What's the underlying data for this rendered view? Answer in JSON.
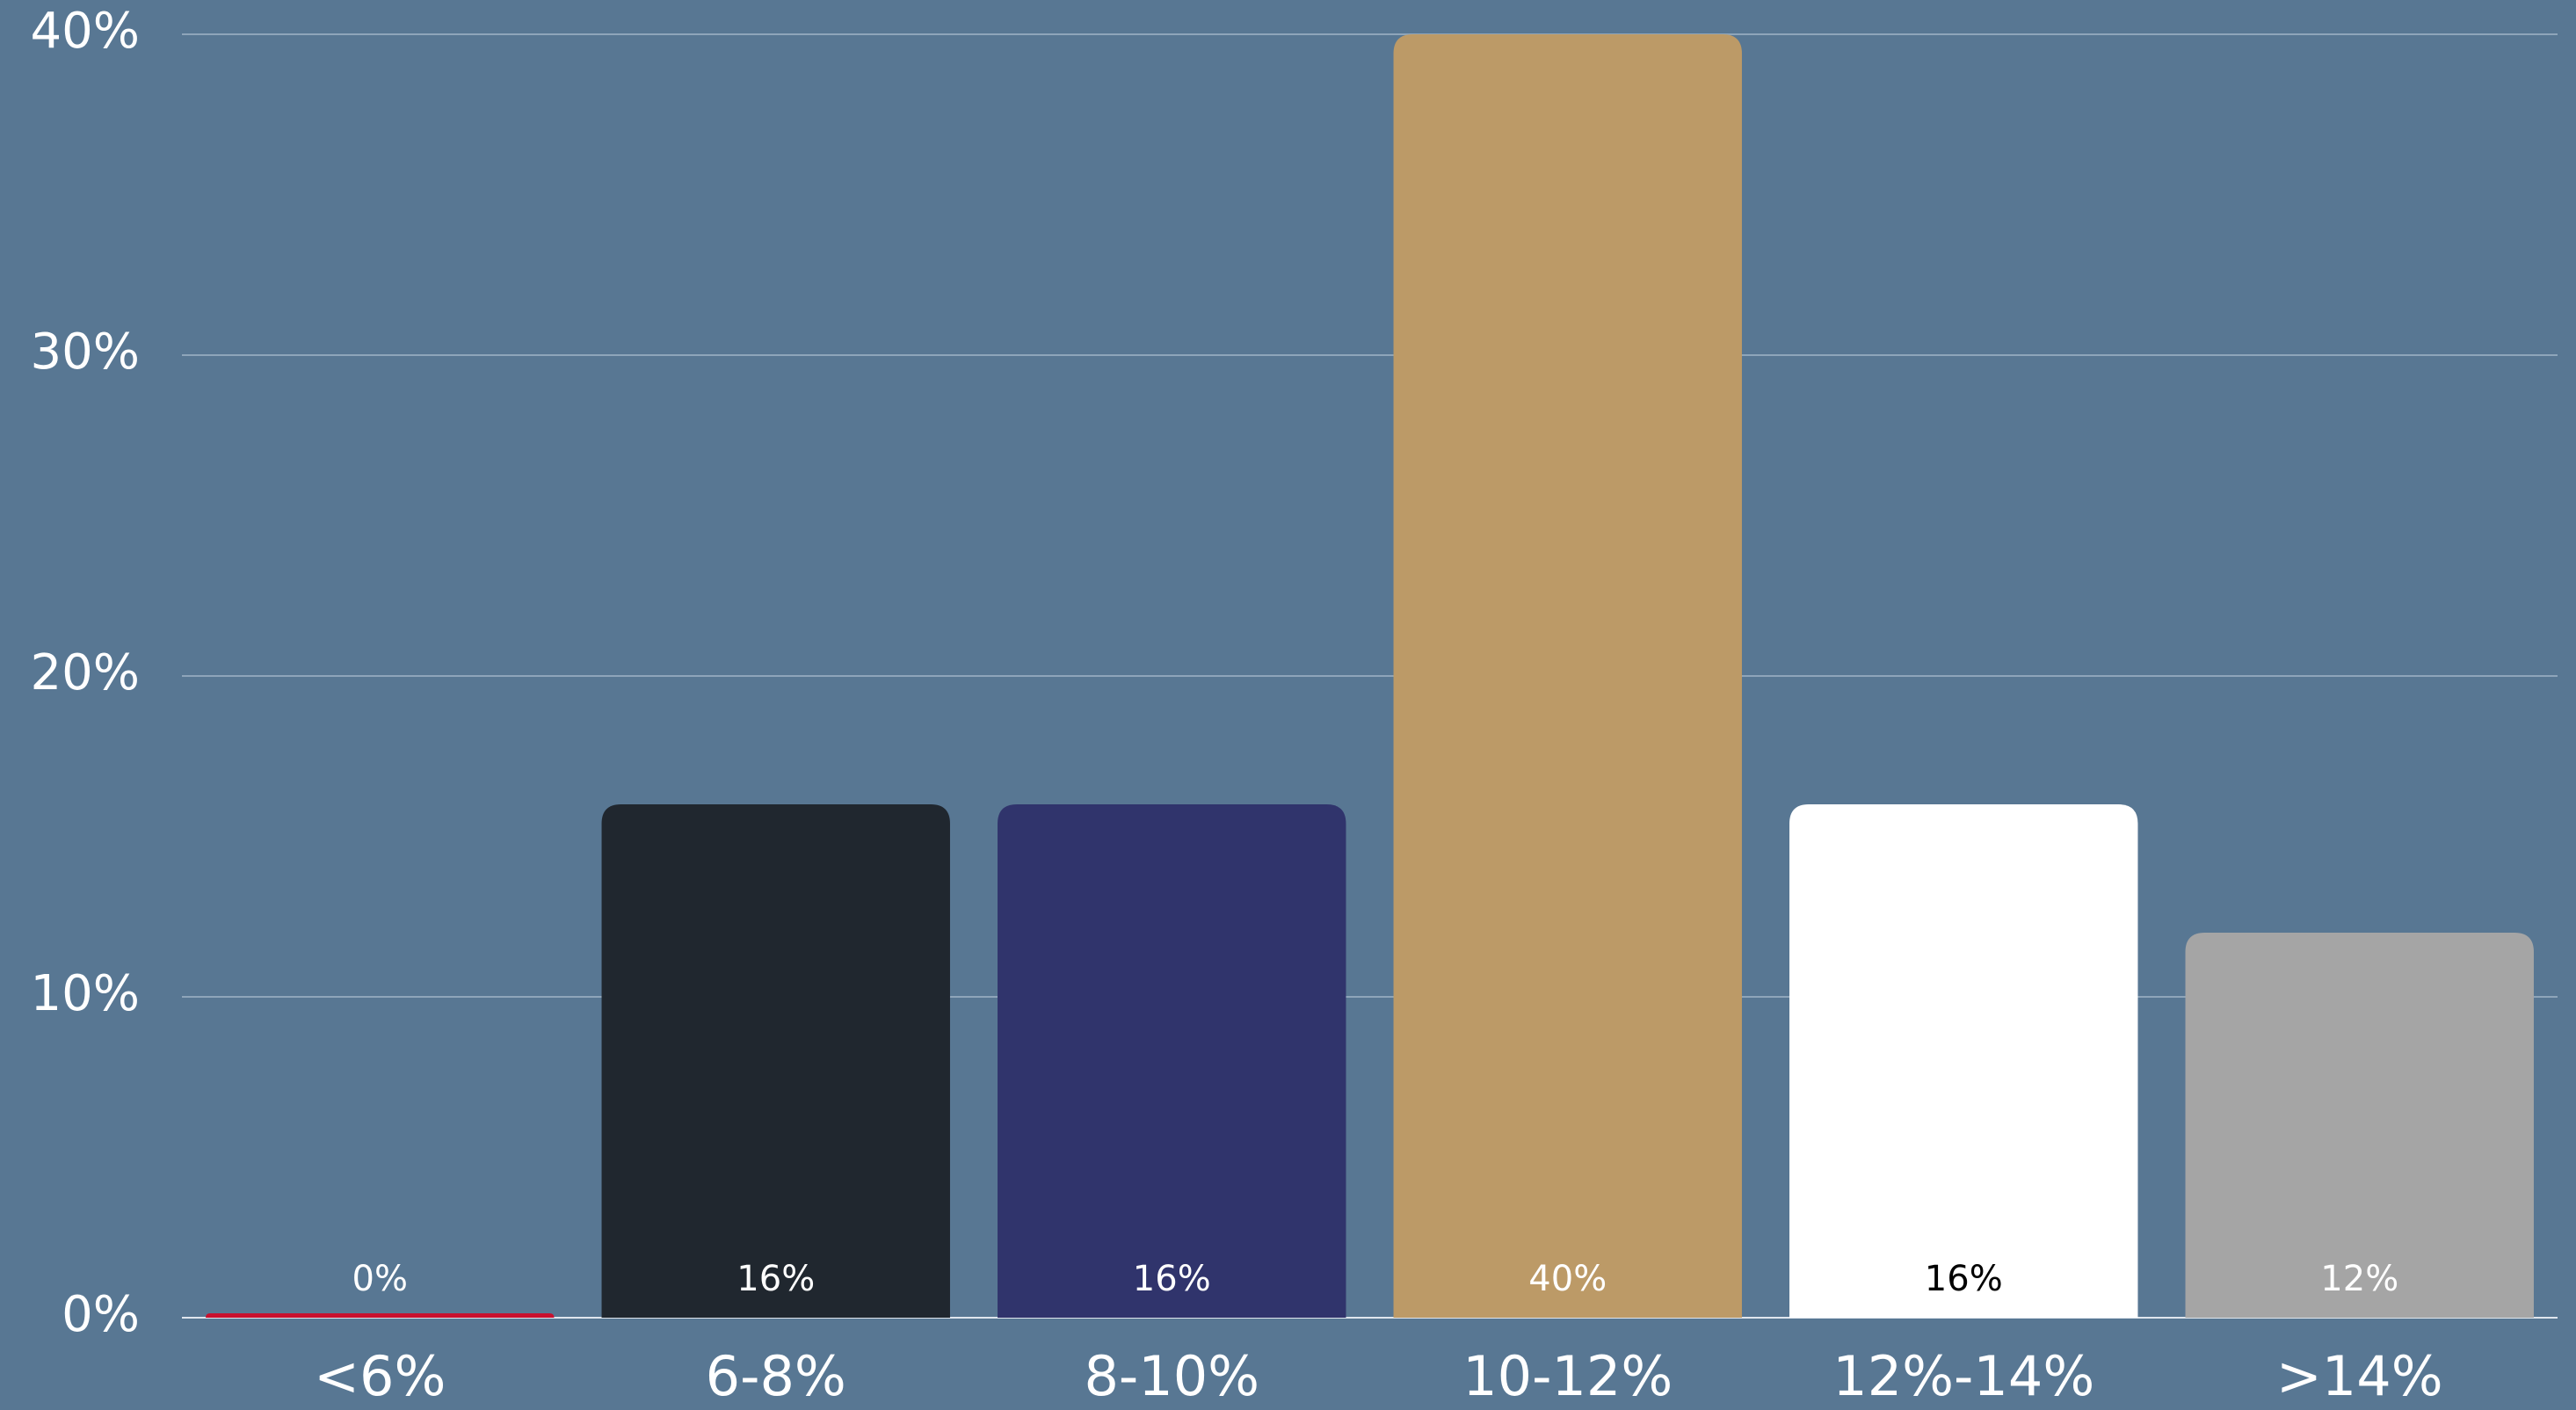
{
  "chart_data": {
    "type": "bar",
    "categories": [
      "<6%",
      "6-8%",
      "8-10%",
      "10-12%",
      "12%-14%",
      ">14%"
    ],
    "values": [
      0,
      16,
      16,
      40,
      16,
      12
    ],
    "value_labels": [
      "0%",
      "16%",
      "16%",
      "40%",
      "16%",
      "12%"
    ],
    "colors": [
      "#c8102e",
      "#20272f",
      "#30346c",
      "#bc9a67",
      "#ffffff",
      "#a5a5a5"
    ],
    "ylim": [
      0,
      40
    ],
    "yticks": [
      {
        "value": 0,
        "label": "0%"
      },
      {
        "value": 10,
        "label": "10%"
      },
      {
        "value": 20,
        "label": "20%"
      },
      {
        "value": 30,
        "label": "30%"
      },
      {
        "value": 40,
        "label": "40%"
      }
    ],
    "grid": true
  }
}
